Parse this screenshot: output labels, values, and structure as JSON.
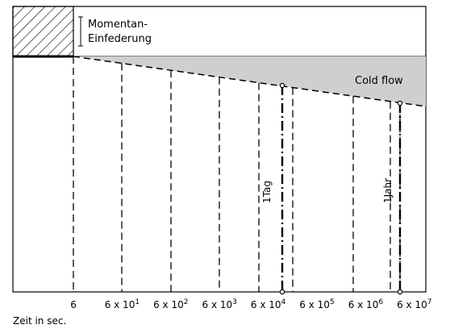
{
  "labels": {
    "instant": [
      "Momentan-",
      "Einfederung"
    ],
    "cold_flow": "Cold flow",
    "day": "1Tag",
    "year": "1Jahr",
    "axis_title": "Zeit in sec."
  },
  "ticks": [
    {
      "base": "6",
      "exp": ""
    },
    {
      "base": "6 x 10",
      "exp": "1"
    },
    {
      "base": "6 x 10",
      "exp": "2"
    },
    {
      "base": "6 x 10",
      "exp": "3"
    },
    {
      "base": "6 x 10",
      "exp": "4"
    },
    {
      "base": "6 x 10",
      "exp": "5"
    },
    {
      "base": "6 x 10",
      "exp": "6"
    },
    {
      "base": "6 x 10",
      "exp": "7"
    }
  ],
  "colors": {
    "cold_flow_fill": "#cfcfcf",
    "line": "#000000"
  }
}
